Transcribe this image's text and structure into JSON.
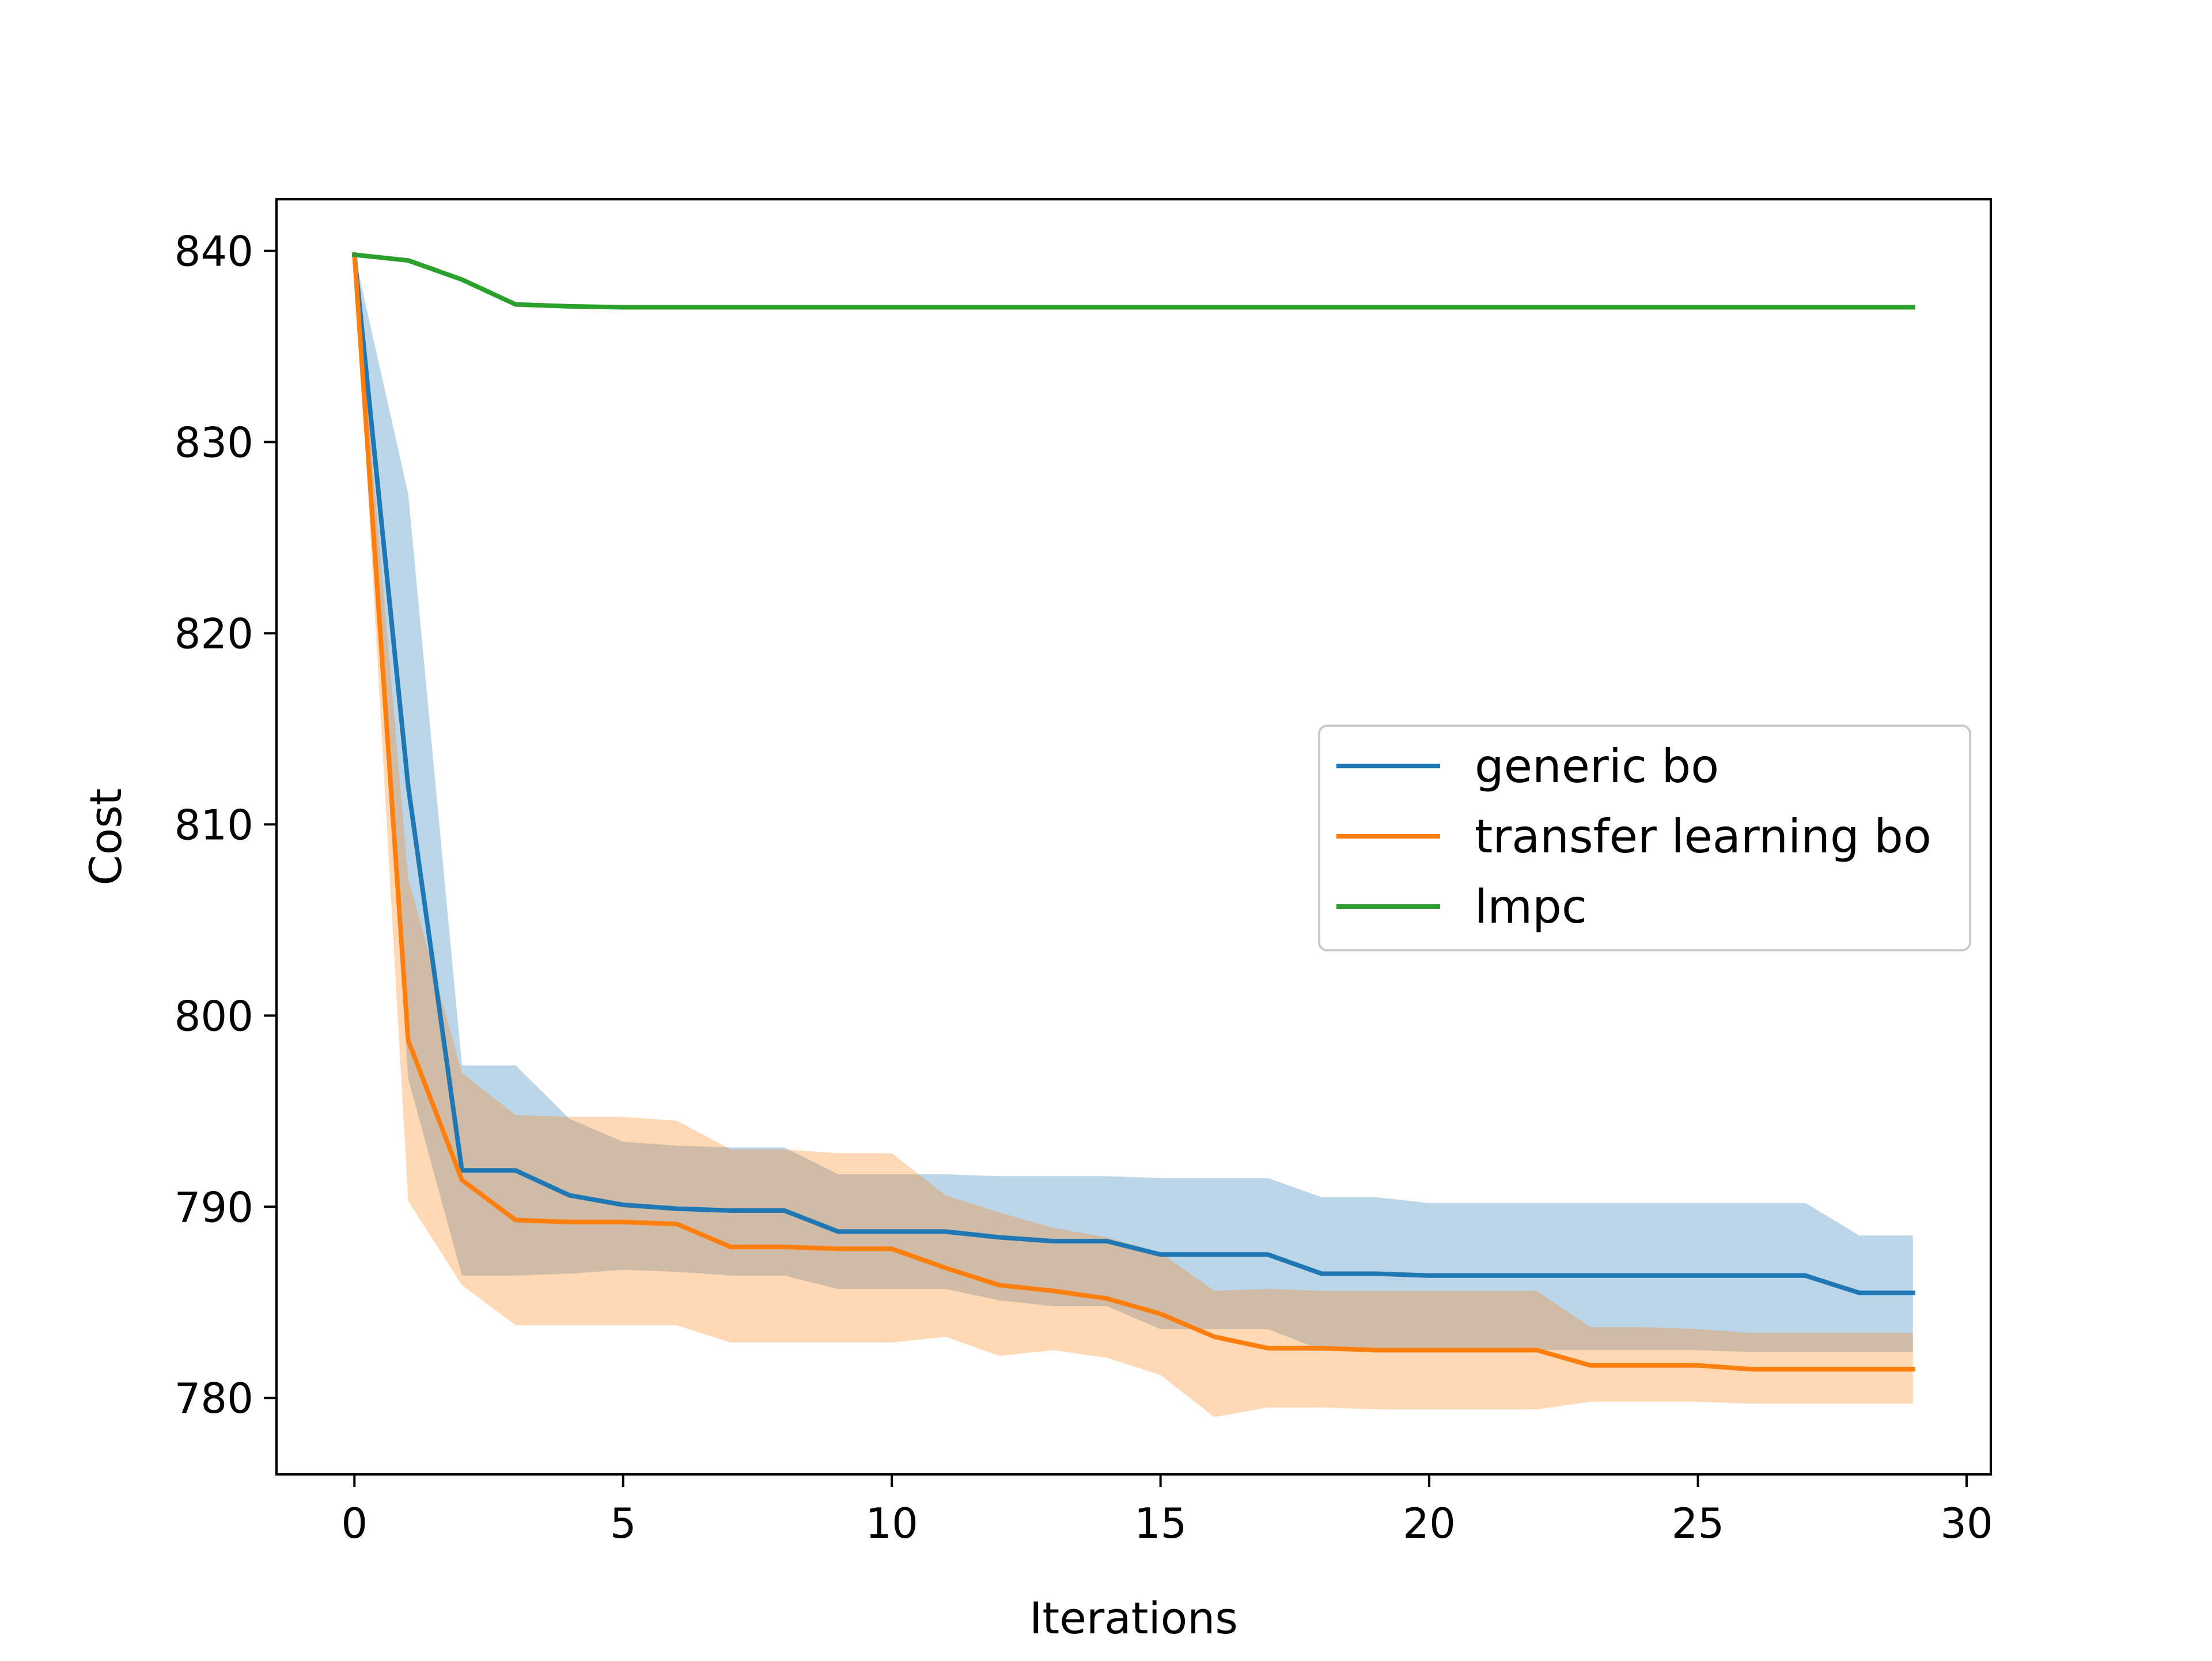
{
  "chart_data": {
    "type": "line",
    "title": "",
    "xlabel": "Iterations",
    "ylabel": "Cost",
    "xlim": [
      -1.45,
      30.45
    ],
    "ylim": [
      776.0,
      842.7
    ],
    "xticks": [
      0,
      5,
      10,
      15,
      20,
      25,
      30
    ],
    "yticks": [
      780,
      790,
      800,
      810,
      820,
      830,
      840
    ],
    "grid": false,
    "legend_position": "center-right",
    "x": [
      0,
      1,
      2,
      3,
      4,
      5,
      6,
      7,
      8,
      9,
      10,
      11,
      12,
      13,
      14,
      15,
      16,
      17,
      18,
      19,
      20,
      21,
      22,
      23,
      24,
      25,
      26,
      27,
      28,
      29
    ],
    "series": [
      {
        "name": "generic bo",
        "color": "#1f77b4",
        "values": [
          839.8,
          812.0,
          791.9,
          791.9,
          790.6,
          790.1,
          789.9,
          789.8,
          789.8,
          788.7,
          788.7,
          788.7,
          788.4,
          788.2,
          788.2,
          787.5,
          787.5,
          787.5,
          786.5,
          786.5,
          786.4,
          786.4,
          786.4,
          786.4,
          786.4,
          786.4,
          786.4,
          786.4,
          785.5,
          785.5
        ],
        "band_upper": [
          839.8,
          827.3,
          797.4,
          797.4,
          794.6,
          793.4,
          793.2,
          793.1,
          793.1,
          791.7,
          791.7,
          791.7,
          791.6,
          791.6,
          791.6,
          791.5,
          791.5,
          791.5,
          790.5,
          790.5,
          790.2,
          790.2,
          790.2,
          790.2,
          790.2,
          790.2,
          790.2,
          790.2,
          788.5,
          788.5
        ],
        "band_lower": [
          839.8,
          796.7,
          786.4,
          786.4,
          786.5,
          786.7,
          786.6,
          786.4,
          786.4,
          785.7,
          785.7,
          785.7,
          785.1,
          784.8,
          784.8,
          783.6,
          783.6,
          783.6,
          782.5,
          782.5,
          782.5,
          782.5,
          782.5,
          782.5,
          782.5,
          782.5,
          782.4,
          782.4,
          782.4,
          782.4
        ]
      },
      {
        "name": "transfer learning bo",
        "color": "#ff7f0e",
        "values": [
          839.8,
          798.7,
          791.4,
          789.3,
          789.2,
          789.2,
          789.1,
          787.9,
          787.9,
          787.8,
          787.8,
          786.8,
          785.9,
          785.6,
          785.2,
          784.4,
          783.2,
          782.6,
          782.6,
          782.5,
          782.5,
          782.5,
          782.5,
          781.7,
          781.7,
          781.7,
          781.5,
          781.5,
          781.5,
          781.5
        ],
        "band_upper": [
          839.8,
          807.2,
          797.0,
          794.8,
          794.7,
          794.7,
          794.5,
          793.0,
          793.0,
          792.8,
          792.8,
          790.6,
          789.7,
          788.9,
          788.4,
          787.6,
          785.6,
          785.7,
          785.6,
          785.6,
          785.6,
          785.6,
          785.6,
          783.7,
          783.7,
          783.6,
          783.4,
          783.4,
          783.4,
          783.4
        ],
        "band_lower": [
          839.8,
          790.3,
          785.9,
          783.8,
          783.8,
          783.8,
          783.8,
          782.9,
          782.9,
          782.9,
          782.9,
          783.2,
          782.2,
          782.5,
          782.1,
          781.2,
          779.0,
          779.5,
          779.5,
          779.4,
          779.4,
          779.4,
          779.4,
          779.8,
          779.8,
          779.8,
          779.7,
          779.7,
          779.7,
          779.7
        ]
      },
      {
        "name": "lmpc",
        "color": "#2ca02c",
        "values": [
          839.8,
          839.5,
          838.5,
          837.2,
          837.1,
          837.05,
          837.05,
          837.05,
          837.05,
          837.05,
          837.05,
          837.05,
          837.05,
          837.05,
          837.05,
          837.05,
          837.05,
          837.05,
          837.05,
          837.05,
          837.05,
          837.05,
          837.05,
          837.05,
          837.05,
          837.05,
          837.05,
          837.05,
          837.05,
          837.05
        ]
      }
    ]
  }
}
